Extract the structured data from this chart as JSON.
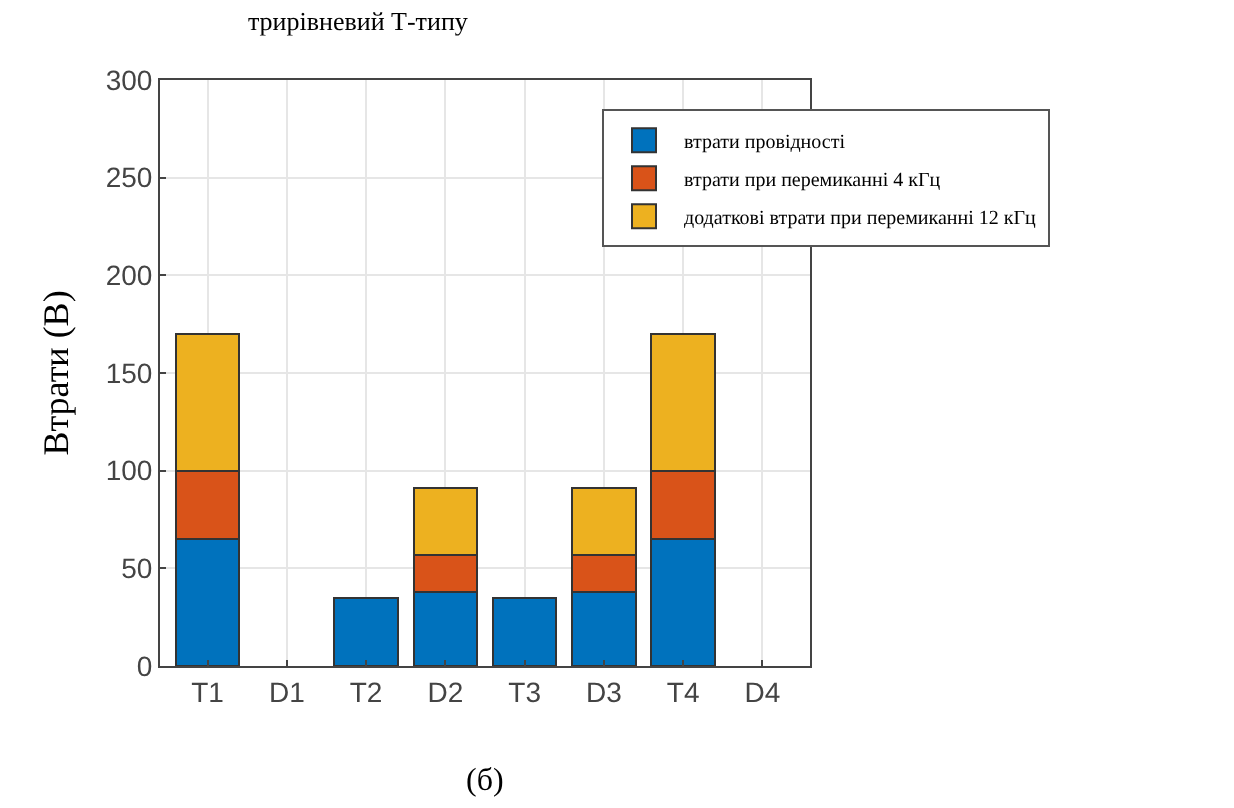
{
  "chart_data": {
    "type": "bar",
    "title": "трирівневий Т-типу",
    "ylabel": "Втрати (В)",
    "categories": [
      "T1",
      "D1",
      "T2",
      "D2",
      "T3",
      "D3",
      "T4",
      "D4"
    ],
    "stacked": true,
    "series": [
      {
        "name": "втрати провідності",
        "color": "#0072bd",
        "values": [
          65,
          0,
          35,
          38,
          35,
          38,
          65,
          0
        ]
      },
      {
        "name": "втрати при перемиканні 4 кГц",
        "color": "#d95319",
        "values": [
          35,
          0,
          0,
          19,
          0,
          19,
          35,
          0
        ]
      },
      {
        "name": "додаткові втрати при перемиканні 12 кГц",
        "color": "#edb120",
        "values": [
          70,
          0,
          0,
          34,
          0,
          34,
          70,
          0
        ]
      }
    ],
    "ylim": [
      0,
      300
    ],
    "yticks": [
      0,
      50,
      100,
      150,
      200,
      250,
      300
    ],
    "grid": true,
    "legend": "top right",
    "annotations": [
      "(б)"
    ]
  }
}
